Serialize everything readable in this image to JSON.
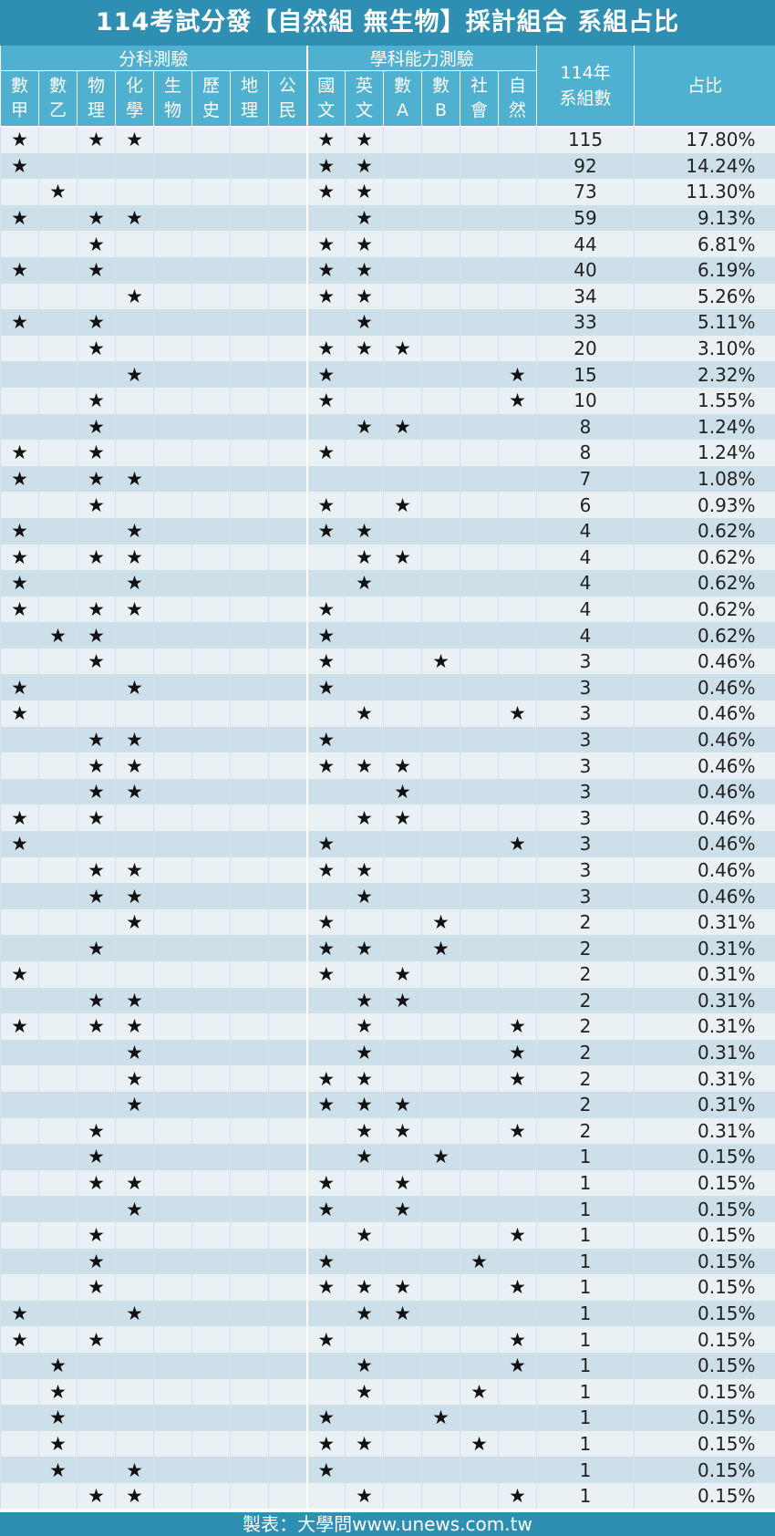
{
  "title": "114考試分發【自然組 無生物】採計組合  系組占比",
  "footer": "製表：大學問www.unews.com.tw",
  "star": "★",
  "header": {
    "group_fenke": "分科測驗",
    "group_xuece": "學科能力測驗",
    "col_count": "114年\n系組數",
    "col_pct": "占比",
    "fenke_cols": [
      [
        "數",
        "甲"
      ],
      [
        "數",
        "乙"
      ],
      [
        "物",
        "理"
      ],
      [
        "化",
        "學"
      ],
      [
        "生",
        "物"
      ],
      [
        "歷",
        "史"
      ],
      [
        "地",
        "理"
      ],
      [
        "公",
        "民"
      ]
    ],
    "xuece_cols": [
      [
        "國",
        "文"
      ],
      [
        "英",
        "文"
      ],
      [
        "數",
        "A"
      ],
      [
        "數",
        "B"
      ],
      [
        "社",
        "會"
      ],
      [
        "自",
        "然"
      ]
    ]
  },
  "rows": [
    {
      "subjects": [
        "數甲",
        "物理",
        "化學",
        "國文",
        "英文"
      ],
      "count": "115",
      "pct": "17.80%"
    },
    {
      "subjects": [
        "數甲",
        "國文",
        "英文"
      ],
      "count": "92",
      "pct": "14.24%"
    },
    {
      "subjects": [
        "數乙",
        "國文",
        "英文"
      ],
      "count": "73",
      "pct": "11.30%"
    },
    {
      "subjects": [
        "數甲",
        "物理",
        "化學",
        "英文"
      ],
      "count": "59",
      "pct": "9.13%"
    },
    {
      "subjects": [
        "物理",
        "國文",
        "英文"
      ],
      "count": "44",
      "pct": "6.81%"
    },
    {
      "subjects": [
        "數甲",
        "物理",
        "國文",
        "英文"
      ],
      "count": "40",
      "pct": "6.19%"
    },
    {
      "subjects": [
        "化學",
        "國文",
        "英文"
      ],
      "count": "34",
      "pct": "5.26%"
    },
    {
      "subjects": [
        "數甲",
        "物理",
        "英文"
      ],
      "count": "33",
      "pct": "5.11%"
    },
    {
      "subjects": [
        "物理",
        "國文",
        "英文",
        "數A"
      ],
      "count": "20",
      "pct": "3.10%"
    },
    {
      "subjects": [
        "化學",
        "國文",
        "自然"
      ],
      "count": "15",
      "pct": "2.32%"
    },
    {
      "subjects": [
        "物理",
        "國文",
        "自然"
      ],
      "count": "10",
      "pct": "1.55%"
    },
    {
      "subjects": [
        "物理",
        "英文",
        "數A"
      ],
      "count": "8",
      "pct": "1.24%"
    },
    {
      "subjects": [
        "數甲",
        "物理",
        "國文"
      ],
      "count": "8",
      "pct": "1.24%"
    },
    {
      "subjects": [
        "數甲",
        "物理",
        "化學"
      ],
      "count": "7",
      "pct": "1.08%"
    },
    {
      "subjects": [
        "物理",
        "國文",
        "數A"
      ],
      "count": "6",
      "pct": "0.93%"
    },
    {
      "subjects": [
        "數甲",
        "化學",
        "國文",
        "英文"
      ],
      "count": "4",
      "pct": "0.62%"
    },
    {
      "subjects": [
        "數甲",
        "物理",
        "化學",
        "英文",
        "數A"
      ],
      "count": "4",
      "pct": "0.62%"
    },
    {
      "subjects": [
        "數甲",
        "化學",
        "英文"
      ],
      "count": "4",
      "pct": "0.62%"
    },
    {
      "subjects": [
        "數甲",
        "物理",
        "化學",
        "國文"
      ],
      "count": "4",
      "pct": "0.62%"
    },
    {
      "subjects": [
        "數乙",
        "物理",
        "國文"
      ],
      "count": "4",
      "pct": "0.62%"
    },
    {
      "subjects": [
        "物理",
        "國文",
        "數B"
      ],
      "count": "3",
      "pct": "0.46%"
    },
    {
      "subjects": [
        "數甲",
        "化學",
        "國文"
      ],
      "count": "3",
      "pct": "0.46%"
    },
    {
      "subjects": [
        "數甲",
        "英文",
        "自然"
      ],
      "count": "3",
      "pct": "0.46%"
    },
    {
      "subjects": [
        "物理",
        "化學",
        "國文"
      ],
      "count": "3",
      "pct": "0.46%"
    },
    {
      "subjects": [
        "物理",
        "化學",
        "國文",
        "英文",
        "數A"
      ],
      "count": "3",
      "pct": "0.46%"
    },
    {
      "subjects": [
        "物理",
        "化學",
        "數A"
      ],
      "count": "3",
      "pct": "0.46%"
    },
    {
      "subjects": [
        "數甲",
        "物理",
        "英文",
        "數A"
      ],
      "count": "3",
      "pct": "0.46%"
    },
    {
      "subjects": [
        "數甲",
        "國文",
        "自然"
      ],
      "count": "3",
      "pct": "0.46%"
    },
    {
      "subjects": [
        "物理",
        "化學",
        "國文",
        "英文"
      ],
      "count": "3",
      "pct": "0.46%"
    },
    {
      "subjects": [
        "物理",
        "化學",
        "英文"
      ],
      "count": "3",
      "pct": "0.46%"
    },
    {
      "subjects": [
        "化學",
        "國文",
        "數B"
      ],
      "count": "2",
      "pct": "0.31%"
    },
    {
      "subjects": [
        "物理",
        "國文",
        "英文",
        "數B"
      ],
      "count": "2",
      "pct": "0.31%"
    },
    {
      "subjects": [
        "數甲",
        "國文",
        "數A"
      ],
      "count": "2",
      "pct": "0.31%"
    },
    {
      "subjects": [
        "物理",
        "化學",
        "英文",
        "數A"
      ],
      "count": "2",
      "pct": "0.31%"
    },
    {
      "subjects": [
        "數甲",
        "物理",
        "化學",
        "英文",
        "自然"
      ],
      "count": "2",
      "pct": "0.31%"
    },
    {
      "subjects": [
        "化學",
        "英文",
        "自然"
      ],
      "count": "2",
      "pct": "0.31%"
    },
    {
      "subjects": [
        "化學",
        "國文",
        "英文",
        "自然"
      ],
      "count": "2",
      "pct": "0.31%"
    },
    {
      "subjects": [
        "化學",
        "國文",
        "英文",
        "數A"
      ],
      "count": "2",
      "pct": "0.31%"
    },
    {
      "subjects": [
        "物理",
        "英文",
        "數A",
        "自然"
      ],
      "count": "2",
      "pct": "0.31%"
    },
    {
      "subjects": [
        "物理",
        "英文",
        "數B"
      ],
      "count": "1",
      "pct": "0.15%"
    },
    {
      "subjects": [
        "物理",
        "化學",
        "國文",
        "數A"
      ],
      "count": "1",
      "pct": "0.15%"
    },
    {
      "subjects": [
        "化學",
        "國文",
        "數A"
      ],
      "count": "1",
      "pct": "0.15%"
    },
    {
      "subjects": [
        "物理",
        "英文",
        "自然"
      ],
      "count": "1",
      "pct": "0.15%"
    },
    {
      "subjects": [
        "物理",
        "國文",
        "社會"
      ],
      "count": "1",
      "pct": "0.15%"
    },
    {
      "subjects": [
        "物理",
        "國文",
        "英文",
        "數A",
        "自然"
      ],
      "count": "1",
      "pct": "0.15%"
    },
    {
      "subjects": [
        "數甲",
        "化學",
        "英文",
        "數A"
      ],
      "count": "1",
      "pct": "0.15%"
    },
    {
      "subjects": [
        "數甲",
        "物理",
        "國文",
        "自然"
      ],
      "count": "1",
      "pct": "0.15%"
    },
    {
      "subjects": [
        "數乙",
        "英文",
        "自然"
      ],
      "count": "1",
      "pct": "0.15%"
    },
    {
      "subjects": [
        "數乙",
        "英文",
        "社會"
      ],
      "count": "1",
      "pct": "0.15%"
    },
    {
      "subjects": [
        "數乙",
        "國文",
        "數B"
      ],
      "count": "1",
      "pct": "0.15%"
    },
    {
      "subjects": [
        "數乙",
        "國文",
        "英文",
        "社會"
      ],
      "count": "1",
      "pct": "0.15%"
    },
    {
      "subjects": [
        "數乙",
        "化學",
        "國文"
      ],
      "count": "1",
      "pct": "0.15%"
    },
    {
      "subjects": [
        "物理",
        "化學",
        "英文",
        "自然"
      ],
      "count": "1",
      "pct": "0.15%"
    }
  ]
}
